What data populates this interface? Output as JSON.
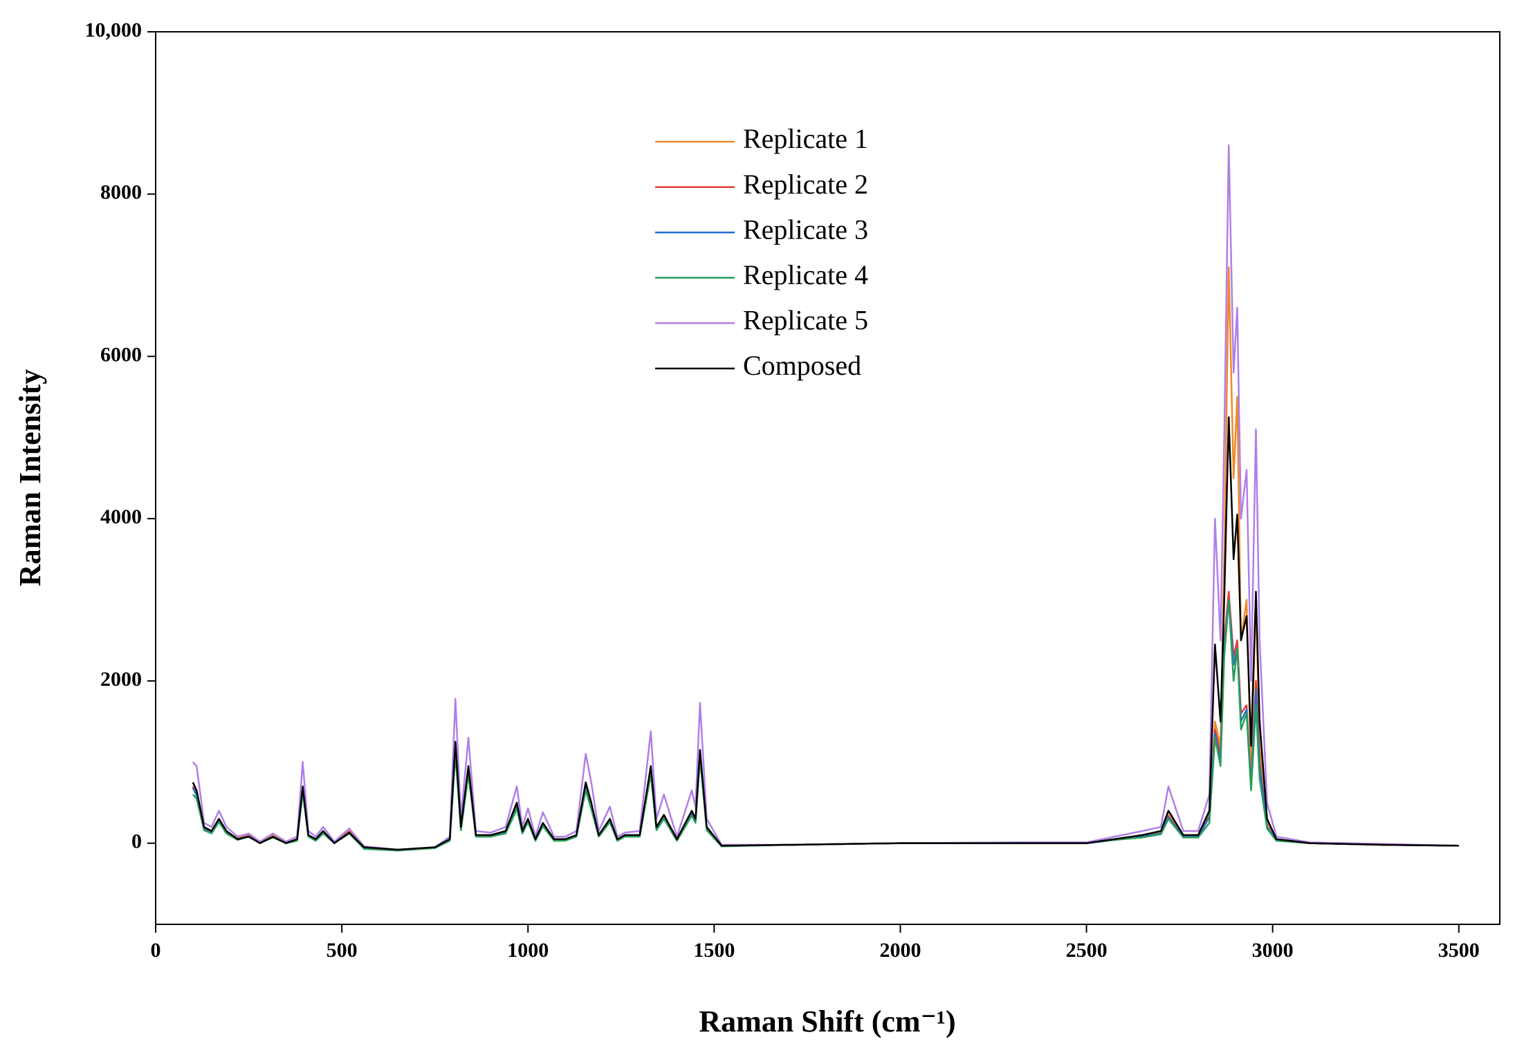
{
  "chart_data": {
    "type": "line",
    "x_label": "Raman Shift (cm⁻¹)",
    "y_label": "Raman Intensity",
    "xlim": [
      0,
      3610
    ],
    "ylim": [
      -1000,
      10000
    ],
    "xticks": [
      0,
      500,
      1000,
      1500,
      2000,
      2500,
      3000,
      3500
    ],
    "yticks": [
      0,
      2000,
      4000,
      6000,
      8000,
      {
        "value": 10000,
        "label": "10,000"
      }
    ],
    "legend": "top-center",
    "x": [
      100,
      110,
      130,
      150,
      170,
      190,
      220,
      250,
      280,
      315,
      350,
      380,
      395,
      410,
      430,
      450,
      480,
      520,
      560,
      650,
      750,
      790,
      805,
      820,
      840,
      860,
      900,
      940,
      970,
      985,
      1000,
      1020,
      1040,
      1070,
      1100,
      1130,
      1155,
      1170,
      1190,
      1220,
      1240,
      1260,
      1300,
      1330,
      1345,
      1365,
      1400,
      1440,
      1450,
      1462,
      1480,
      1520,
      1700,
      2000,
      2300,
      2500,
      2650,
      2700,
      2720,
      2760,
      2800,
      2830,
      2845,
      2860,
      2870,
      2882,
      2895,
      2905,
      2915,
      2930,
      2942,
      2955,
      2965,
      2985,
      3010,
      3100,
      3300,
      3500
    ],
    "series": [
      {
        "name": "Replicate 1",
        "color": "#f0882a",
        "values": [
          700,
          600,
          180,
          140,
          280,
          140,
          60,
          110,
          0,
          100,
          0,
          40,
          650,
          90,
          40,
          130,
          0,
          150,
          -60,
          -90,
          -50,
          40,
          1200,
          180,
          900,
          90,
          90,
          140,
          450,
          140,
          280,
          40,
          230,
          40,
          40,
          90,
          700,
          450,
          90,
          280,
          40,
          90,
          90,
          900,
          180,
          320,
          40,
          380,
          280,
          1100,
          180,
          -30,
          -20,
          0,
          0,
          0,
          90,
          130,
          350,
          90,
          90,
          350,
          1500,
          1200,
          3500,
          7100,
          4500,
          5500,
          2500,
          3000,
          900,
          3000,
          1200,
          250,
          40,
          0,
          -20,
          -30
        ]
      },
      {
        "name": "Replicate 2",
        "color": "#e03c3c",
        "values": [
          700,
          600,
          180,
          140,
          280,
          140,
          50,
          90,
          0,
          80,
          0,
          40,
          650,
          90,
          40,
          140,
          0,
          140,
          -60,
          -90,
          -50,
          40,
          1150,
          170,
          880,
          90,
          90,
          140,
          450,
          140,
          280,
          40,
          230,
          40,
          40,
          90,
          700,
          450,
          90,
          280,
          40,
          90,
          90,
          880,
          180,
          320,
          40,
          370,
          270,
          1080,
          180,
          -30,
          -20,
          0,
          0,
          0,
          80,
          120,
          330,
          80,
          80,
          330,
          1400,
          1100,
          2500,
          3100,
          2300,
          2500,
          1600,
          1700,
          700,
          2000,
          1000,
          200,
          40,
          0,
          -20,
          -30
        ]
      },
      {
        "name": "Replicate 3",
        "color": "#1f6fd6",
        "values": [
          680,
          590,
          170,
          130,
          270,
          130,
          50,
          85,
          0,
          80,
          0,
          40,
          640,
          90,
          40,
          130,
          0,
          130,
          -60,
          -90,
          -50,
          40,
          1130,
          170,
          870,
          90,
          90,
          130,
          440,
          130,
          270,
          40,
          220,
          40,
          40,
          90,
          690,
          440,
          90,
          270,
          40,
          90,
          90,
          870,
          170,
          310,
          40,
          360,
          260,
          1060,
          170,
          -30,
          -20,
          0,
          0,
          0,
          80,
          120,
          320,
          80,
          80,
          320,
          1350,
          1000,
          2400,
          3000,
          2200,
          2400,
          1500,
          1650,
          700,
          1900,
          950,
          200,
          40,
          0,
          -20,
          -30
        ]
      },
      {
        "name": "Replicate 4",
        "color": "#2a9d5a",
        "values": [
          600,
          550,
          160,
          120,
          260,
          120,
          40,
          80,
          0,
          70,
          0,
          30,
          620,
          80,
          30,
          120,
          0,
          120,
          -70,
          -90,
          -60,
          30,
          1100,
          160,
          850,
          80,
          80,
          120,
          420,
          120,
          260,
          30,
          210,
          30,
          30,
          80,
          650,
          420,
          80,
          260,
          30,
          80,
          80,
          850,
          160,
          300,
          30,
          340,
          250,
          1050,
          160,
          -40,
          -20,
          0,
          10,
          10,
          70,
          110,
          300,
          70,
          70,
          250,
          1300,
          950,
          2300,
          3000,
          2000,
          2400,
          1400,
          1600,
          650,
          1700,
          800,
          180,
          30,
          0,
          -20,
          -30
        ]
      },
      {
        "name": "Replicate 5",
        "color": "#b07ee8",
        "values": [
          1000,
          950,
          250,
          200,
          400,
          200,
          80,
          120,
          20,
          120,
          20,
          80,
          1000,
          150,
          80,
          200,
          20,
          180,
          -40,
          -80,
          -50,
          80,
          1780,
          300,
          1300,
          150,
          130,
          200,
          700,
          200,
          430,
          80,
          380,
          80,
          80,
          150,
          1100,
          750,
          150,
          450,
          80,
          130,
          150,
          1380,
          300,
          600,
          80,
          650,
          450,
          1730,
          300,
          -20,
          -20,
          0,
          10,
          10,
          150,
          200,
          700,
          150,
          150,
          600,
          4000,
          2500,
          5000,
          8600,
          5800,
          6600,
          4000,
          4600,
          2000,
          5100,
          2500,
          500,
          80,
          10,
          -10,
          -30
        ]
      },
      {
        "name": "Composed",
        "color": "#000000",
        "values": [
          750,
          650,
          200,
          150,
          300,
          150,
          50,
          80,
          0,
          80,
          0,
          50,
          700,
          100,
          50,
          150,
          0,
          130,
          -50,
          -80,
          -50,
          50,
          1250,
          200,
          950,
          100,
          100,
          150,
          500,
          150,
          300,
          50,
          250,
          50,
          50,
          100,
          750,
          500,
          100,
          300,
          50,
          100,
          100,
          950,
          200,
          350,
          50,
          400,
          300,
          1150,
          200,
          -30,
          -20,
          0,
          0,
          0,
          100,
          150,
          400,
          100,
          100,
          400,
          2450,
          1500,
          3000,
          5250,
          3500,
          4050,
          2500,
          2800,
          1200,
          3100,
          1500,
          300,
          50,
          0,
          -20,
          -30
        ]
      }
    ]
  }
}
